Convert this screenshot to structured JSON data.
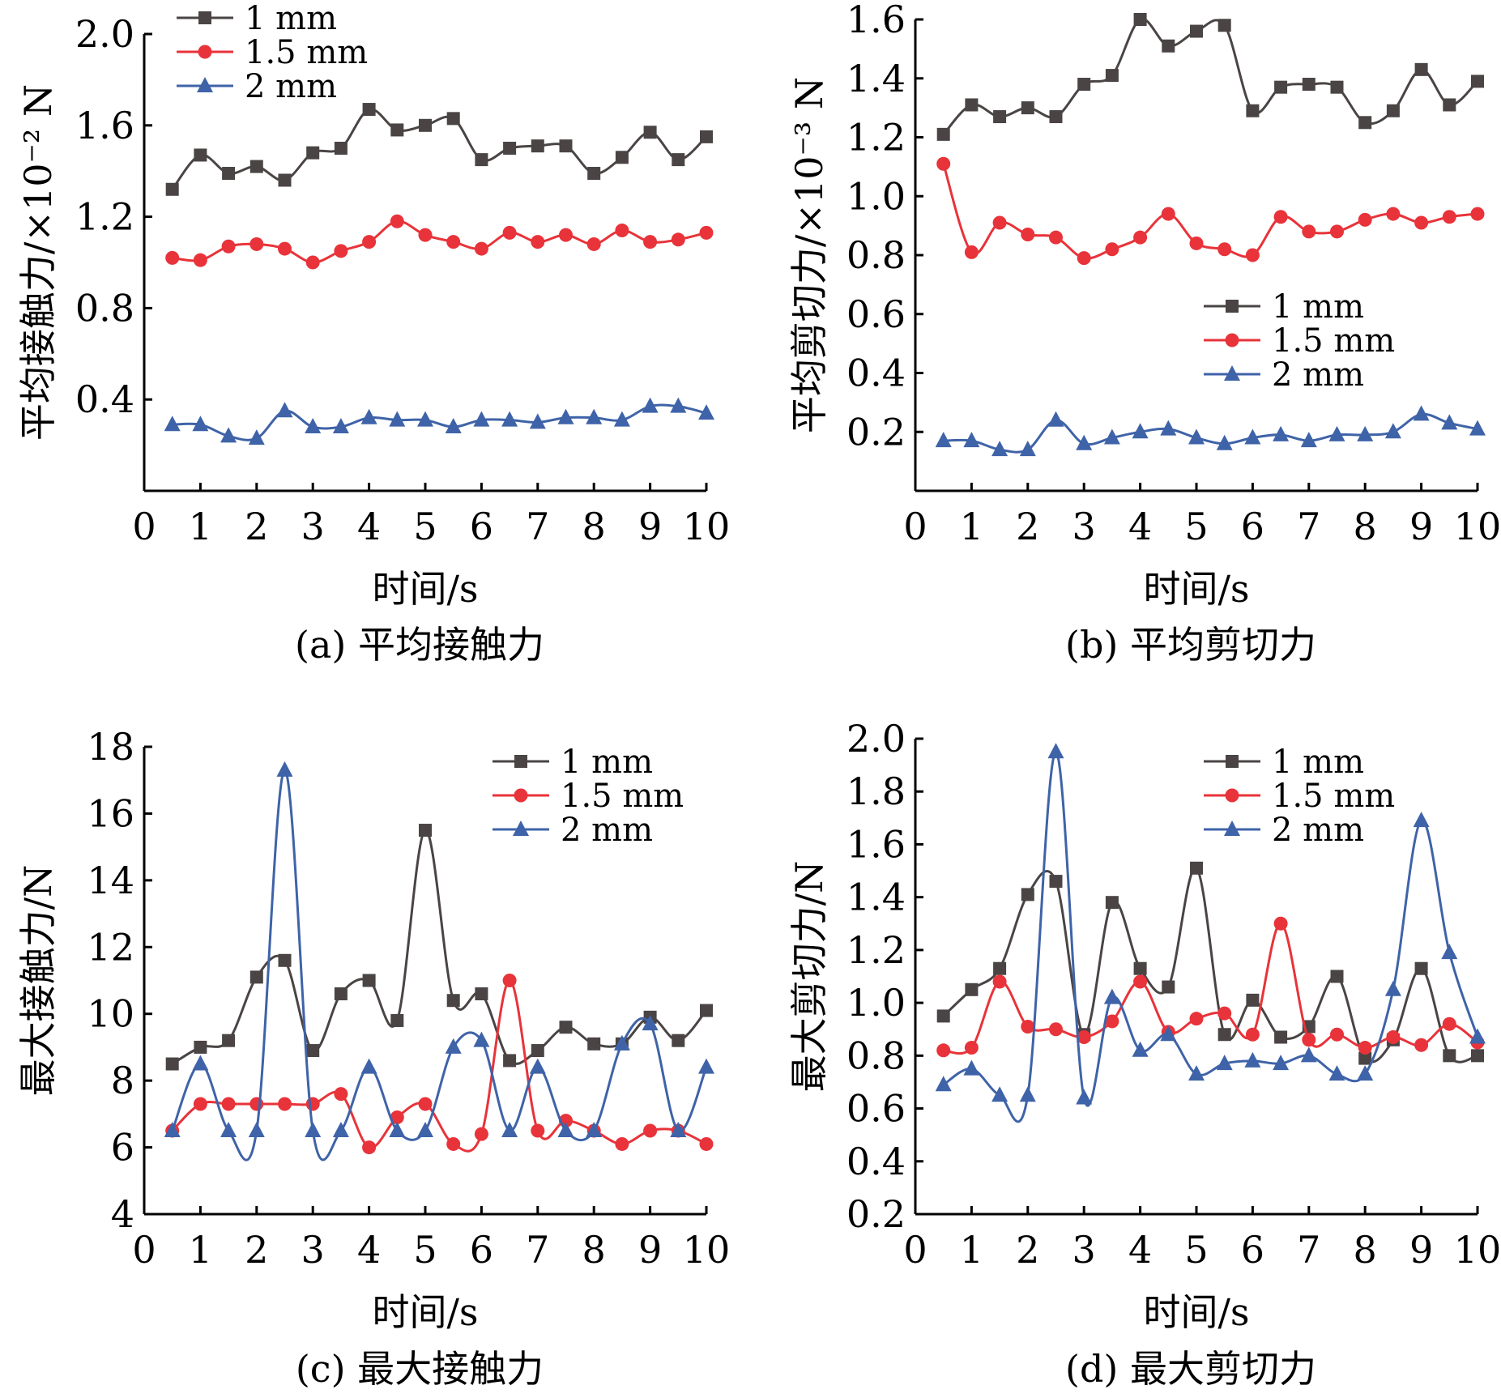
{
  "colors": {
    "1mm": "#4a4444",
    "1.5mm": "#e8333a",
    "2mm": "#3f63a8"
  },
  "chart_data": [
    {
      "id": "a",
      "type": "line",
      "caption": "(a) 平均接触力",
      "xlabel": "时间/s",
      "ylabel": "平均接触力/×10⁻² N",
      "xlim": [
        0,
        10
      ],
      "ylim": [
        0,
        2.0
      ],
      "xticks": [
        0,
        1,
        2,
        3,
        4,
        5,
        6,
        7,
        8,
        9,
        10
      ],
      "yticks": [
        0.4,
        0.8,
        1.2,
        1.6,
        2.0
      ],
      "ytick_labels": [
        "0.4",
        "0.8",
        "1.2",
        "1.6",
        "2.0"
      ],
      "legend": "top-left",
      "x": [
        0.5,
        1,
        1.5,
        2,
        2.5,
        3,
        3.5,
        4,
        4.5,
        5,
        5.5,
        6,
        6.5,
        7,
        7.5,
        8,
        8.5,
        9,
        9.5,
        10
      ],
      "series": [
        {
          "name": "1 mm",
          "marker": "square",
          "color": "#4a4444",
          "values": [
            1.32,
            1.47,
            1.39,
            1.42,
            1.36,
            1.48,
            1.5,
            1.67,
            1.58,
            1.6,
            1.63,
            1.45,
            1.5,
            1.51,
            1.51,
            1.39,
            1.46,
            1.57,
            1.45,
            1.55
          ]
        },
        {
          "name": "1.5 mm",
          "marker": "circle",
          "color": "#e8333a",
          "values": [
            1.02,
            1.01,
            1.07,
            1.08,
            1.06,
            1.0,
            1.05,
            1.09,
            1.18,
            1.12,
            1.09,
            1.06,
            1.13,
            1.09,
            1.12,
            1.08,
            1.14,
            1.09,
            1.1,
            1.13
          ]
        },
        {
          "name": "2 mm",
          "marker": "triangle",
          "color": "#3f63a8",
          "values": [
            0.29,
            0.29,
            0.24,
            0.23,
            0.35,
            0.28,
            0.28,
            0.32,
            0.31,
            0.31,
            0.28,
            0.31,
            0.31,
            0.3,
            0.32,
            0.32,
            0.31,
            0.37,
            0.37,
            0.34
          ]
        }
      ]
    },
    {
      "id": "b",
      "type": "line",
      "caption": "(b) 平均剪切力",
      "xlabel": "时间/s",
      "ylabel": "平均剪切力/×10⁻³ N",
      "xlim": [
        0,
        10
      ],
      "ylim": [
        0,
        1.6
      ],
      "xticks": [
        0,
        1,
        2,
        3,
        4,
        5,
        6,
        7,
        8,
        9,
        10
      ],
      "yticks": [
        0.2,
        0.4,
        0.6,
        0.8,
        1.0,
        1.2,
        1.4,
        1.6
      ],
      "ytick_labels": [
        "0.2",
        "0.4",
        "0.6",
        "0.8",
        "1.0",
        "1.2",
        "1.4",
        "1.6"
      ],
      "legend": "center-right",
      "x": [
        0.5,
        1,
        1.5,
        2,
        2.5,
        3,
        3.5,
        4,
        4.5,
        5,
        5.5,
        6,
        6.5,
        7,
        7.5,
        8,
        8.5,
        9,
        9.5,
        10
      ],
      "series": [
        {
          "name": "1 mm",
          "marker": "square",
          "color": "#4a4444",
          "values": [
            1.21,
            1.31,
            1.27,
            1.3,
            1.27,
            1.38,
            1.41,
            1.6,
            1.51,
            1.56,
            1.58,
            1.29,
            1.37,
            1.38,
            1.37,
            1.25,
            1.29,
            1.43,
            1.31,
            1.39
          ]
        },
        {
          "name": "1.5 mm",
          "marker": "circle",
          "color": "#e8333a",
          "values": [
            1.11,
            0.81,
            0.91,
            0.87,
            0.86,
            0.79,
            0.82,
            0.86,
            0.94,
            0.84,
            0.82,
            0.8,
            0.93,
            0.88,
            0.88,
            0.92,
            0.94,
            0.91,
            0.93,
            0.94
          ]
        },
        {
          "name": "2 mm",
          "marker": "triangle",
          "color": "#3f63a8",
          "values": [
            0.17,
            0.17,
            0.14,
            0.14,
            0.24,
            0.16,
            0.18,
            0.2,
            0.21,
            0.18,
            0.16,
            0.18,
            0.19,
            0.17,
            0.19,
            0.19,
            0.2,
            0.26,
            0.23,
            0.21
          ]
        }
      ]
    },
    {
      "id": "c",
      "type": "line",
      "caption": "(c) 最大接触力",
      "xlabel": "时间/s",
      "ylabel": "最大接触力/N",
      "xlim": [
        0,
        10
      ],
      "ylim": [
        4,
        18
      ],
      "xticks": [
        0,
        1,
        2,
        3,
        4,
        5,
        6,
        7,
        8,
        9,
        10
      ],
      "yticks": [
        4,
        6,
        8,
        10,
        12,
        14,
        16,
        18
      ],
      "ytick_labels": [
        "4",
        "6",
        "8",
        "10",
        "12",
        "14",
        "16",
        "18"
      ],
      "legend": "top-right",
      "x": [
        0.5,
        1,
        1.5,
        2,
        2.5,
        3,
        3.5,
        4,
        4.5,
        5,
        5.5,
        6,
        6.5,
        7,
        7.5,
        8,
        8.5,
        9,
        9.5,
        10
      ],
      "series": [
        {
          "name": "1 mm",
          "marker": "square",
          "color": "#4a4444",
          "values": [
            8.5,
            9.0,
            9.2,
            11.1,
            11.6,
            8.9,
            10.6,
            11.0,
            9.8,
            15.5,
            10.4,
            10.6,
            8.6,
            8.9,
            9.6,
            9.1,
            9.1,
            9.9,
            9.2,
            10.1
          ]
        },
        {
          "name": "1.5 mm",
          "marker": "circle",
          "color": "#e8333a",
          "values": [
            6.5,
            7.3,
            7.3,
            7.3,
            7.3,
            7.3,
            7.6,
            6.0,
            6.9,
            7.3,
            6.1,
            6.4,
            11.0,
            6.5,
            6.8,
            6.5,
            6.1,
            6.5,
            6.5,
            6.1
          ]
        },
        {
          "name": "2 mm",
          "marker": "triangle",
          "color": "#3f63a8",
          "values": [
            6.5,
            8.5,
            6.5,
            6.5,
            17.3,
            6.5,
            6.5,
            8.4,
            6.5,
            6.5,
            9.0,
            9.2,
            6.5,
            8.4,
            6.5,
            6.5,
            9.1,
            9.7,
            6.5,
            8.4
          ]
        }
      ]
    },
    {
      "id": "d",
      "type": "line",
      "caption": "(d) 最大剪切力",
      "xlabel": "时间/s",
      "ylabel": "最大剪切力/N",
      "xlim": [
        0,
        10
      ],
      "ylim": [
        0.2,
        2.0
      ],
      "xticks": [
        0,
        1,
        2,
        3,
        4,
        5,
        6,
        7,
        8,
        9,
        10
      ],
      "yticks": [
        0.2,
        0.4,
        0.6,
        0.8,
        1.0,
        1.2,
        1.4,
        1.6,
        1.8,
        2.0
      ],
      "ytick_labels": [
        "0.2",
        "0.4",
        "0.6",
        "0.8",
        "1.0",
        "1.2",
        "1.4",
        "1.6",
        "1.8",
        "2.0"
      ],
      "legend": "top-right",
      "x": [
        0.5,
        1,
        1.5,
        2,
        2.5,
        3,
        3.5,
        4,
        4.5,
        5,
        5.5,
        6,
        6.5,
        7,
        7.5,
        8,
        8.5,
        9,
        9.5,
        10
      ],
      "series": [
        {
          "name": "1 mm",
          "marker": "square",
          "color": "#4a4444",
          "values": [
            0.95,
            1.05,
            1.13,
            1.41,
            1.46,
            0.88,
            1.38,
            1.13,
            1.06,
            1.51,
            0.88,
            1.01,
            0.87,
            0.91,
            1.1,
            0.79,
            0.86,
            1.13,
            0.8,
            0.8
          ]
        },
        {
          "name": "1.5 mm",
          "marker": "circle",
          "color": "#e8333a",
          "values": [
            0.82,
            0.83,
            1.08,
            0.91,
            0.9,
            0.87,
            0.93,
            1.08,
            0.89,
            0.94,
            0.96,
            0.88,
            1.3,
            0.86,
            0.88,
            0.83,
            0.87,
            0.84,
            0.92,
            0.85
          ]
        },
        {
          "name": "2 mm",
          "marker": "triangle",
          "color": "#3f63a8",
          "values": [
            0.69,
            0.75,
            0.65,
            0.65,
            1.95,
            0.64,
            1.02,
            0.82,
            0.88,
            0.73,
            0.77,
            0.78,
            0.77,
            0.8,
            0.73,
            0.73,
            1.05,
            1.69,
            1.19,
            0.87
          ]
        }
      ]
    }
  ]
}
